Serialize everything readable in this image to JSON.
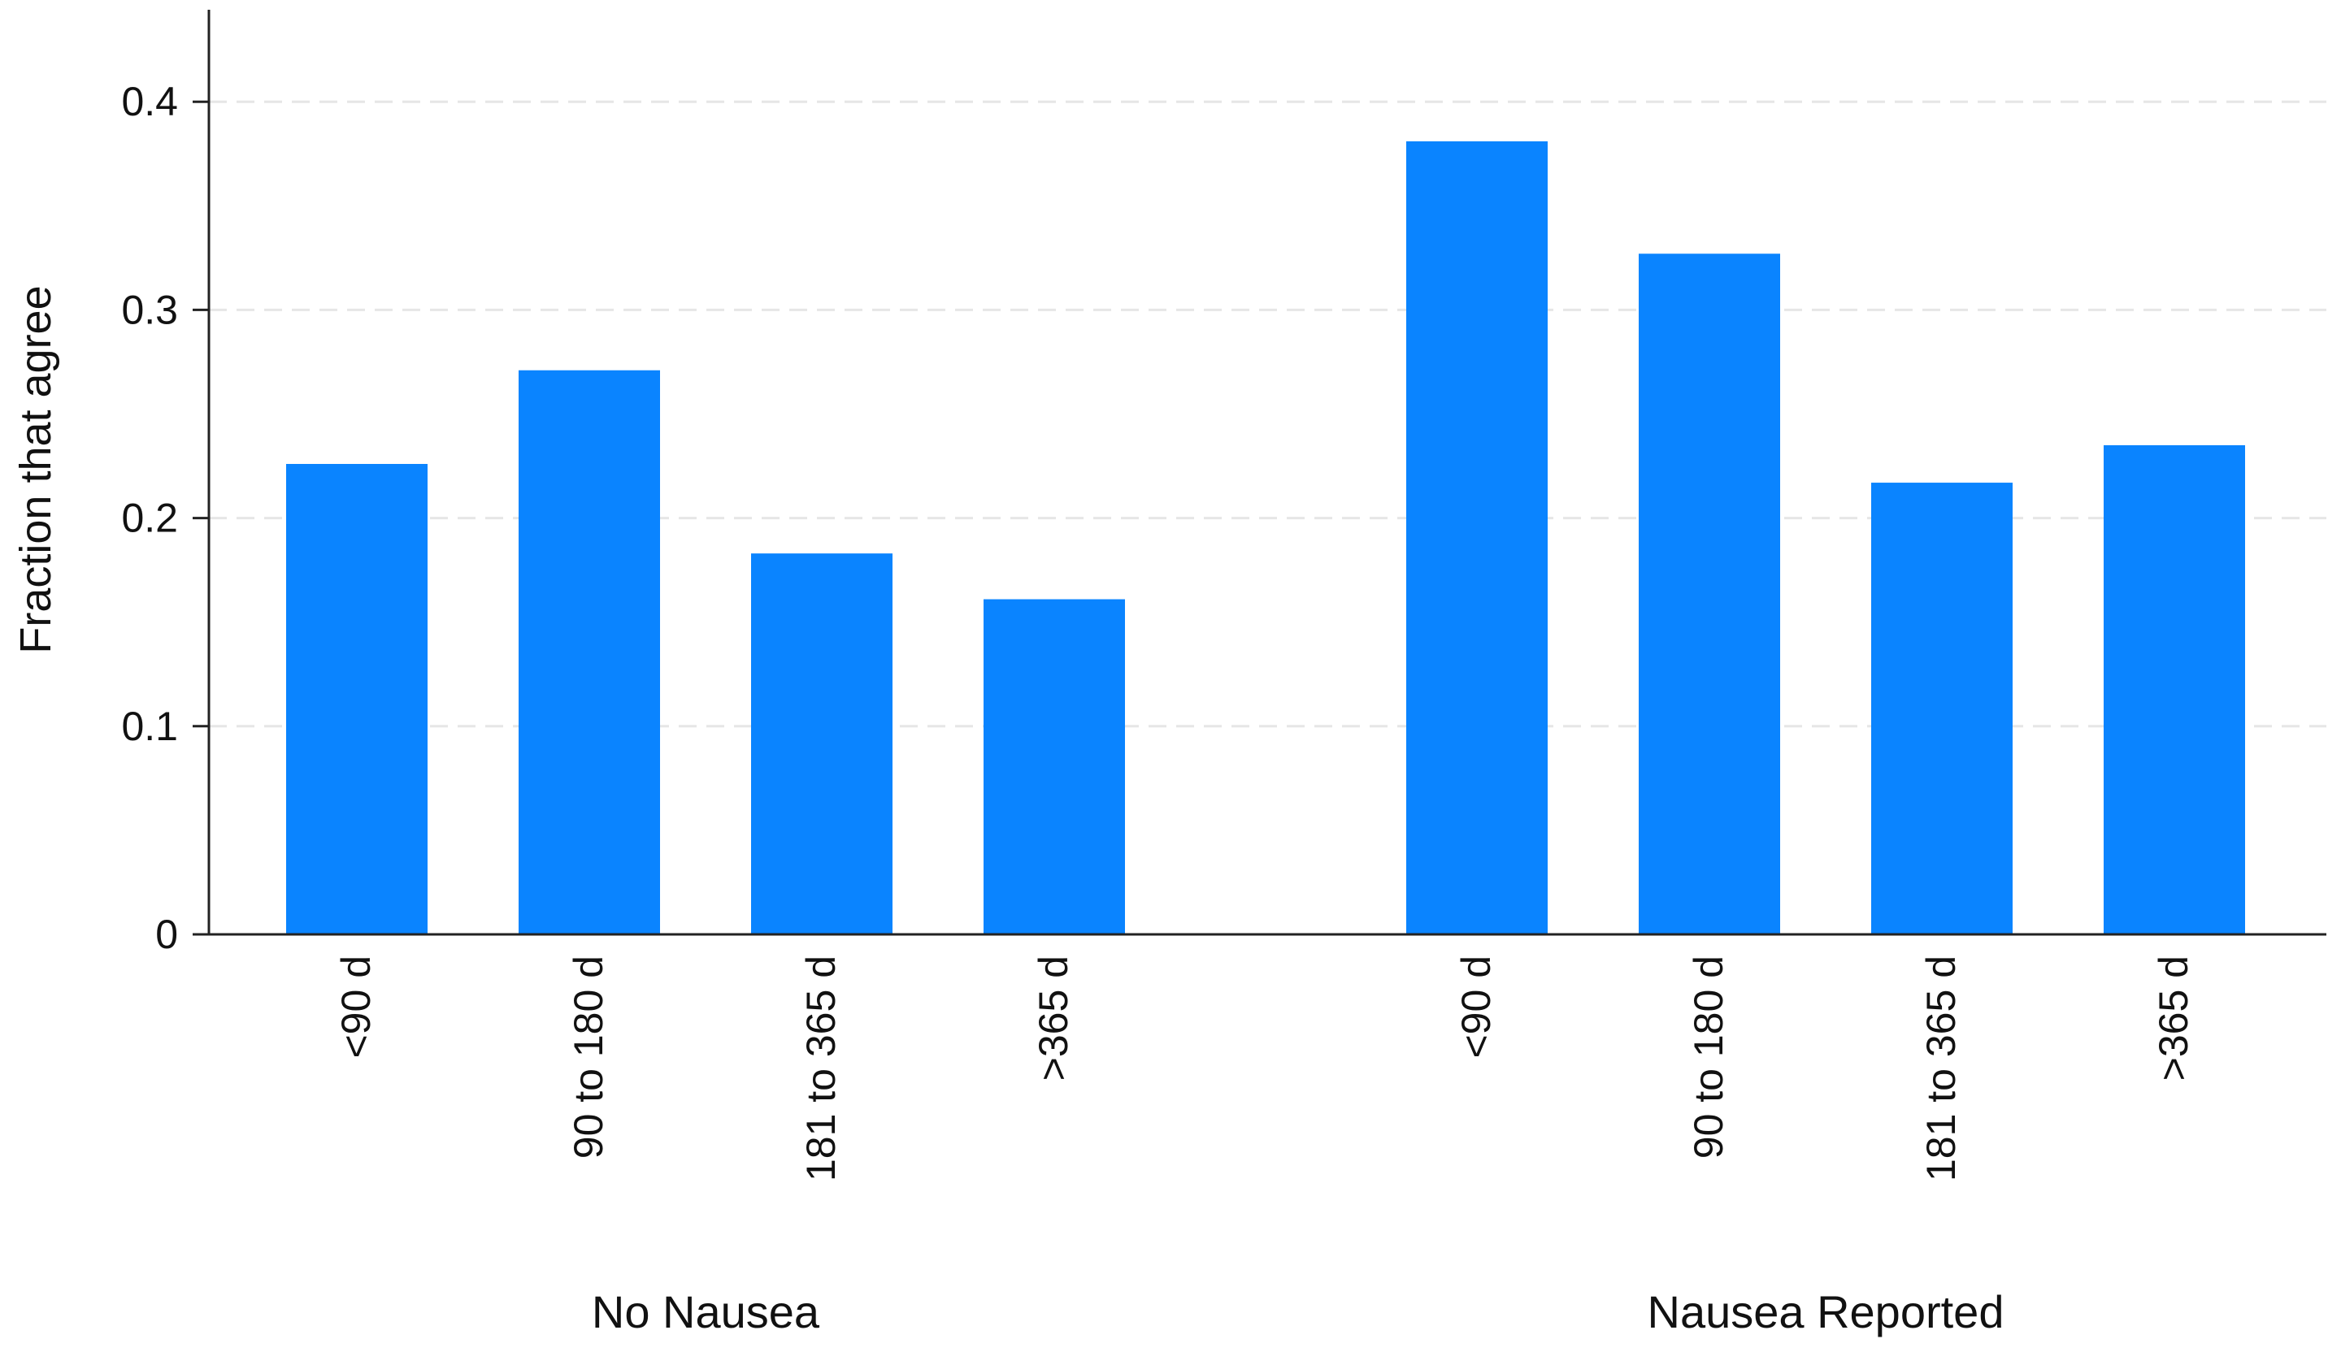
{
  "chart_data": {
    "type": "bar",
    "title": "",
    "xlabel": "",
    "ylabel": "Fraction that agree",
    "ylim": [
      0,
      0.42
    ],
    "yticks": [
      0,
      0.1,
      0.2,
      0.3,
      0.4
    ],
    "ytick_labels": [
      "0",
      "0.1",
      "0.2",
      "0.3",
      "0.4"
    ],
    "grid": "horizontal dashed",
    "bar_color": "#0a84ff",
    "groups": [
      {
        "label": "No Nausea",
        "categories": [
          "<90 d",
          "90 to 180 d",
          "181 to 365 d",
          ">365 d"
        ],
        "values": [
          0.226,
          0.271,
          0.183,
          0.161
        ]
      },
      {
        "label": "Nausea Reported",
        "categories": [
          "<90 d",
          "90 to 180 d",
          "181 to 365 d",
          ">365 d"
        ],
        "values": [
          0.381,
          0.327,
          0.217,
          0.235
        ]
      }
    ]
  }
}
